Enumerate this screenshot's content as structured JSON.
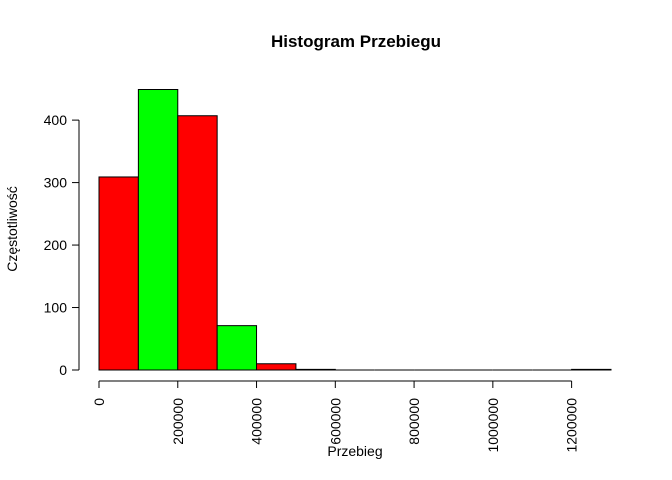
{
  "chart_data": {
    "type": "bar",
    "title": "Histogram Przebiegu",
    "xlabel": "Przebieg",
    "ylabel": "Częstotliwość",
    "bin_width": 100000,
    "bins": [
      {
        "start": 0,
        "end": 100000,
        "count": 309,
        "color": "#ff0000"
      },
      {
        "start": 100000,
        "end": 200000,
        "count": 449,
        "color": "#00ff00"
      },
      {
        "start": 200000,
        "end": 300000,
        "count": 407,
        "color": "#ff0000"
      },
      {
        "start": 300000,
        "end": 400000,
        "count": 71,
        "color": "#00ff00"
      },
      {
        "start": 400000,
        "end": 500000,
        "count": 10,
        "color": "#ff0000"
      },
      {
        "start": 500000,
        "end": 600000,
        "count": 1,
        "color": "#00ff00"
      },
      {
        "start": 600000,
        "end": 700000,
        "count": 0,
        "color": "#ff0000"
      },
      {
        "start": 700000,
        "end": 800000,
        "count": 0,
        "color": "#00ff00"
      },
      {
        "start": 800000,
        "end": 900000,
        "count": 0,
        "color": "#ff0000"
      },
      {
        "start": 900000,
        "end": 1000000,
        "count": 0,
        "color": "#00ff00"
      },
      {
        "start": 1000000,
        "end": 1100000,
        "count": 0,
        "color": "#ff0000"
      },
      {
        "start": 1100000,
        "end": 1200000,
        "count": 0,
        "color": "#00ff00"
      },
      {
        "start": 1200000,
        "end": 1300000,
        "count": 1,
        "color": "#ff0000"
      }
    ],
    "xlim": [
      0,
      1300000
    ],
    "ylim": [
      0,
      449
    ],
    "x_ticks": [
      "0",
      "200000",
      "400000",
      "600000",
      "800000",
      "1000000",
      "1200000"
    ],
    "x_tick_values": [
      0,
      200000,
      400000,
      600000,
      800000,
      1000000,
      1200000
    ],
    "y_ticks": [
      "0",
      "100",
      "200",
      "300",
      "400"
    ],
    "y_tick_values": [
      0,
      100,
      200,
      300,
      400
    ],
    "grid": false,
    "legend": "none"
  }
}
